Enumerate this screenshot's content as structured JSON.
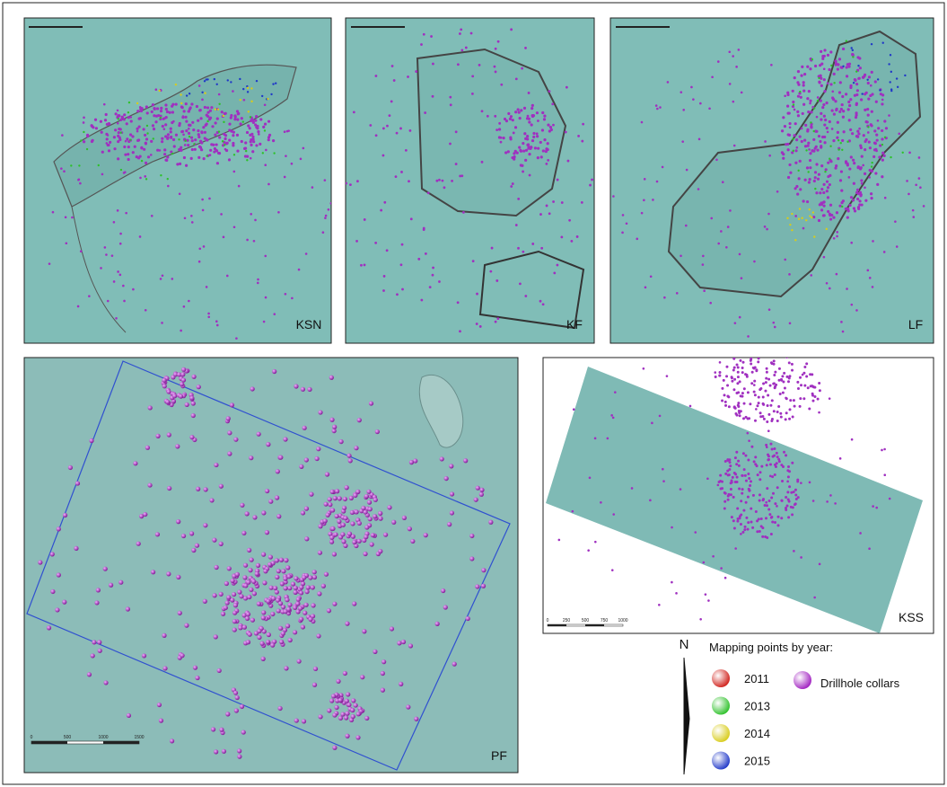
{
  "panels": [
    {
      "label": "KSN"
    },
    {
      "label": "KF"
    },
    {
      "label": "LF"
    },
    {
      "label": "PF"
    },
    {
      "label": "KSS"
    }
  ],
  "scale_bars": {
    "pf": [
      "0",
      "500",
      "1000",
      "1500"
    ],
    "kss": [
      "0",
      "250",
      "500",
      "750",
      "1000"
    ]
  },
  "legend": {
    "north": "N",
    "title": "Mapping points by year:",
    "years": [
      {
        "label": "2011",
        "color": "#d0201a"
      },
      {
        "label": "2013",
        "color": "#2ec12a"
      },
      {
        "label": "2014",
        "color": "#d8cc1a"
      },
      {
        "label": "2015",
        "color": "#2038c8"
      }
    ],
    "drillhole": {
      "label": "Drillhole collars",
      "color": "#a020c0"
    }
  }
}
